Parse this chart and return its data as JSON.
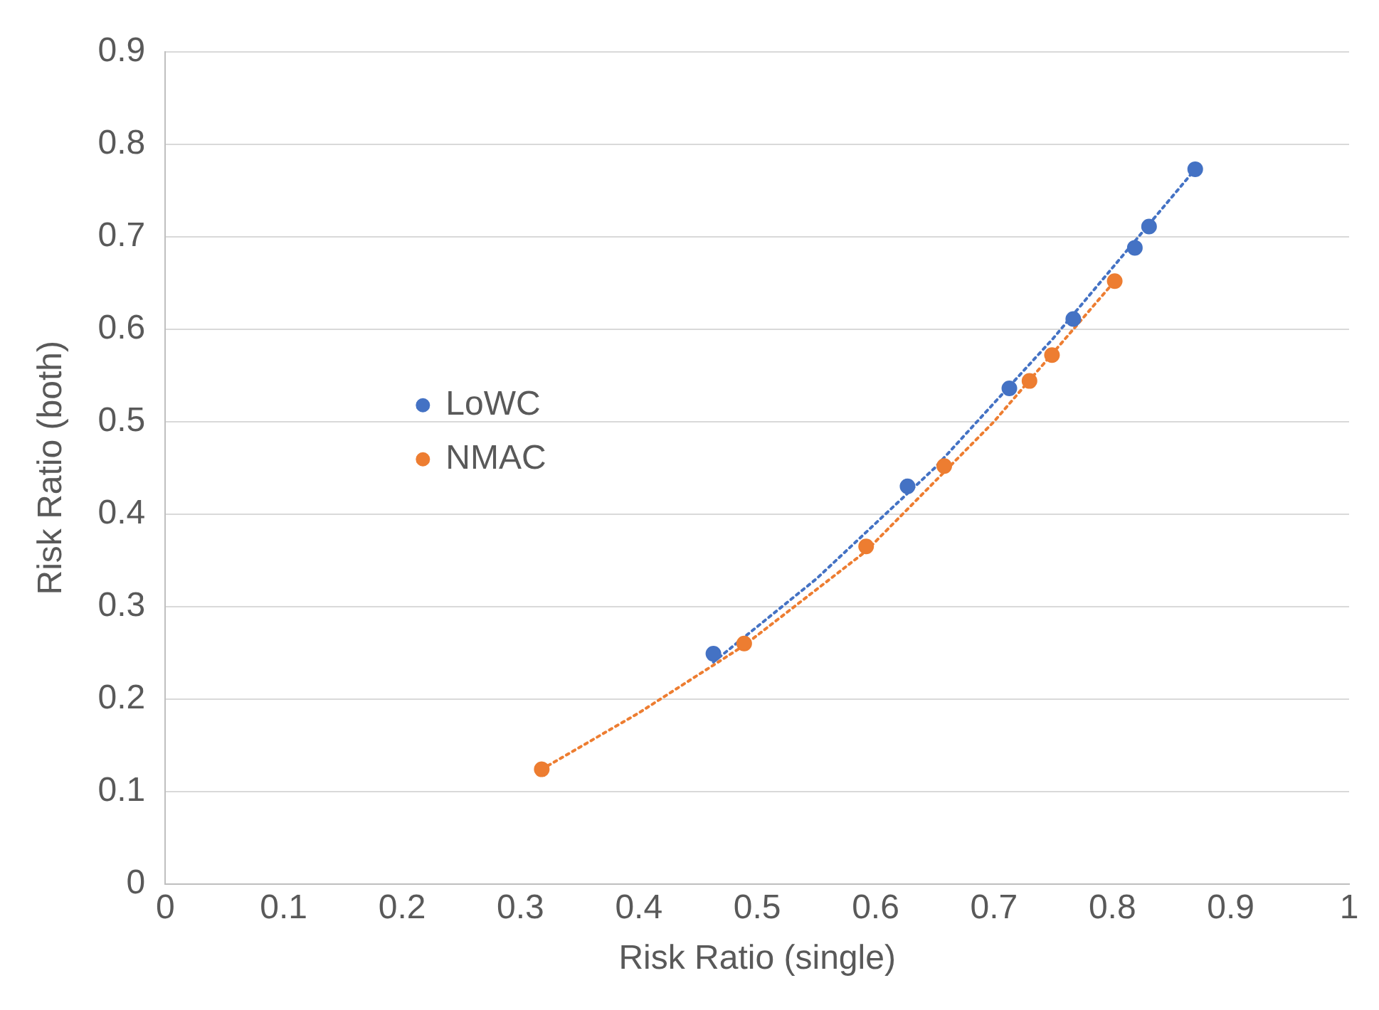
{
  "chart_data": {
    "type": "scatter",
    "xlabel": "Risk Ratio (single)",
    "ylabel": "Risk Ratio (both)",
    "xlim": [
      0,
      1
    ],
    "xticks": [
      0,
      0.1,
      0.2,
      0.3,
      0.4,
      0.5,
      0.6,
      0.7,
      0.8,
      0.9,
      1
    ],
    "ylim": [
      0,
      0.9
    ],
    "yticks": [
      0,
      0.1,
      0.2,
      0.3,
      0.4,
      0.5,
      0.6,
      0.7,
      0.8,
      0.9
    ],
    "grid": "y",
    "legend": "left",
    "marker": "circle",
    "series": [
      {
        "name": "LoWC",
        "color": "#4472c4",
        "x": [
          0.463,
          0.627,
          0.713,
          0.767,
          0.819,
          0.831,
          0.87
        ],
        "values": [
          0.249,
          0.43,
          0.536,
          0.611,
          0.688,
          0.711,
          0.773
        ]
      },
      {
        "name": "NMAC",
        "color": "#ed7d31",
        "x": [
          0.318,
          0.489,
          0.592,
          0.658,
          0.73,
          0.749,
          0.802
        ],
        "values": [
          0.124,
          0.26,
          0.365,
          0.452,
          0.544,
          0.572,
          0.652
        ]
      },
      {
        "type": "line",
        "color": "#4472c4",
        "line_style": "dotted",
        "marker": "none",
        "x": [
          0.463,
          0.55,
          0.65,
          0.75,
          0.87
        ],
        "values": [
          0.24,
          0.33,
          0.45,
          0.59,
          0.773
        ]
      },
      {
        "type": "line",
        "color": "#ed7d31",
        "line_style": "dotted",
        "marker": "none",
        "x": [
          0.318,
          0.4,
          0.489,
          0.592,
          0.7,
          0.802
        ],
        "values": [
          0.124,
          0.185,
          0.258,
          0.36,
          0.5,
          0.652
        ]
      }
    ]
  }
}
